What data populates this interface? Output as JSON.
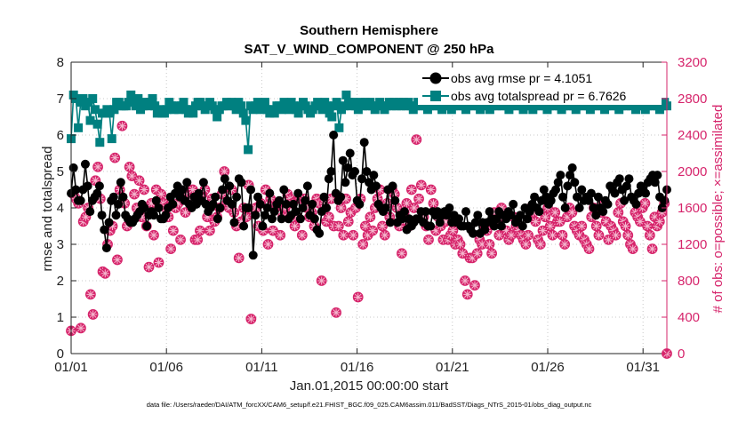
{
  "chart_data": {
    "type": "line",
    "title": [
      "Southern Hemisphere",
      "SAT_V_WIND_COMPONENT @ 250 hPa"
    ],
    "xlabel": "Jan.01,2015 00:00:00 start",
    "ylabel_left": "rmse and totalspread",
    "ylabel_right": "# of obs: o=possible; ×=assimilated",
    "x_range": [
      0,
      31.25
    ],
    "ylim_left": [
      0,
      8
    ],
    "ylim_right": [
      0,
      3200
    ],
    "x_ticks": [
      {
        "x": 0,
        "label": "01/01"
      },
      {
        "x": 5,
        "label": "01/06"
      },
      {
        "x": 10,
        "label": "01/11"
      },
      {
        "x": 15,
        "label": "01/16"
      },
      {
        "x": 20,
        "label": "01/21"
      },
      {
        "x": 25,
        "label": "01/26"
      },
      {
        "x": 30,
        "label": "01/31"
      }
    ],
    "y_ticks_left": [
      0,
      1,
      2,
      3,
      4,
      5,
      6,
      7,
      8
    ],
    "y_ticks_right": [
      0,
      400,
      800,
      1200,
      1600,
      2000,
      2400,
      2800,
      3200
    ],
    "legend": {
      "placement": "top-right",
      "entries": [
        "obs avg rmse pr = 4.1051",
        "obs avg totalspread pr = 6.7626"
      ]
    },
    "colors": {
      "rmse": "#000000",
      "totalspread": "#008080",
      "obs": "#d6246b"
    },
    "series": [
      {
        "name": "obs avg rmse pr = 4.1051",
        "values": [
          4.4,
          5.1,
          4.5,
          4.2,
          4.2,
          4.5,
          5.2,
          4.6,
          3.9,
          4.2,
          4.3,
          4.4,
          4.6,
          3.8,
          3.4,
          2.9,
          3.6,
          4.2,
          4.3,
          3.8,
          4.1,
          4.7,
          4.3,
          3.8,
          3.7,
          3.6,
          3.6,
          3.7,
          3.8,
          3.9,
          4.1,
          4.0,
          3.5,
          3.8,
          3.9,
          3.8,
          4.2,
          4.0,
          3.7,
          3.7,
          3.8,
          4.0,
          4.3,
          4.1,
          4.4,
          4.6,
          4.3,
          4.5,
          4.2,
          4.7,
          4.1,
          4.0,
          4.3,
          4.1,
          4.4,
          4.2,
          4.7,
          4.1,
          3.9,
          4.0,
          4.1,
          4.3,
          3.7,
          4.0,
          4.5,
          4.8,
          4.2,
          4.6,
          4.1,
          3.6,
          4.3,
          4.8,
          4.7,
          3.5,
          4.0,
          4.0,
          4.5,
          2.7,
          3.8,
          4.3,
          4.1,
          3.5,
          3.8,
          4.0,
          4.4,
          3.7,
          3.9,
          4.1,
          4.2,
          3.7,
          4.5,
          4.1,
          3.7,
          3.8,
          4.1,
          3.9,
          4.4,
          3.7,
          4.0,
          4.2,
          4.6,
          3.8,
          4.1,
          3.7,
          3.4,
          3.3,
          3.9,
          4.3,
          4.0,
          4.8,
          5.0,
          6.0,
          4.4,
          4.2,
          4.3,
          5.3,
          4.7,
          5.1,
          5.5,
          4.9,
          5.0,
          4.2,
          4.1,
          4.8,
          5.8,
          5.0,
          4.7,
          4.5,
          4.9,
          4.6,
          4.1,
          4.0,
          3.9,
          4.0,
          4.5,
          3.6,
          4.6,
          4.2,
          3.6,
          3.8,
          3.7,
          3.9,
          3.4,
          3.7,
          3.5,
          3.6,
          3.7,
          3.7,
          3.9,
          3.6,
          3.9,
          3.5,
          3.5,
          3.9,
          3.8,
          3.9,
          3.6,
          3.8,
          3.9,
          3.8,
          4.0,
          3.6,
          3.8,
          3.6,
          3.7,
          3.5,
          3.5,
          3.9,
          3.5,
          3.4,
          3.3,
          3.6,
          3.8,
          3.3,
          3.6,
          3.4,
          3.6,
          3.9,
          3.7,
          3.5,
          3.7,
          3.9,
          3.5,
          3.8,
          3.7,
          3.9,
          3.8,
          4.1,
          3.6,
          3.7,
          3.8,
          3.5,
          4.0,
          3.7,
          3.9,
          4.1,
          4.3,
          4.0,
          3.9,
          4.2,
          4.5,
          4.3,
          4.1,
          4.2,
          4.4,
          4.5,
          4.7,
          4.9,
          4.3,
          4.0,
          4.6,
          4.9,
          5.1,
          4.7,
          4.3,
          4.0,
          4.5,
          4.2,
          4.3,
          4.2,
          4.4,
          4.0,
          3.8,
          4.3,
          4.0,
          3.9,
          4.2,
          4.1,
          4.6,
          4.5,
          4.4,
          4.7,
          4.8,
          4.5,
          4.2,
          4.6,
          4.8,
          4.3,
          4.2,
          4.1,
          4.4,
          4.6,
          4.5,
          4.4,
          4.7,
          4.8,
          4.9,
          4.7,
          4.9,
          4.3,
          4.0,
          4.2,
          4.5
        ]
      },
      {
        "name": "obs avg totalspread pr = 6.7626",
        "values": [
          5.9,
          7.1,
          7.0,
          6.2,
          6.9,
          7.0,
          6.8,
          6.9,
          6.4,
          7.0,
          6.7,
          6.3,
          5.8,
          6.6,
          6.6,
          6.7,
          6.6,
          5.9,
          6.7,
          6.9,
          6.9,
          6.8,
          6.8,
          6.8,
          6.9,
          7.1,
          6.9,
          6.8,
          7.0,
          6.7,
          6.8,
          6.9,
          6.8,
          6.9,
          7.0,
          6.8,
          6.6,
          6.7,
          6.6,
          6.6,
          6.7,
          6.9,
          6.8,
          6.7,
          6.8,
          6.7,
          6.8,
          6.9,
          6.7,
          6.6,
          6.7,
          6.6,
          6.8,
          6.9,
          6.9,
          6.8,
          6.7,
          6.8,
          6.9,
          6.8,
          6.7,
          6.5,
          6.7,
          6.8,
          6.8,
          6.9,
          6.8,
          6.9,
          6.8,
          6.7,
          6.9,
          6.8,
          6.6,
          6.4,
          5.6,
          6.8,
          6.7,
          6.8,
          6.9,
          6.7,
          6.8,
          6.9,
          6.7,
          6.6,
          6.7,
          6.6,
          6.8,
          6.8,
          6.7,
          6.9,
          6.8,
          6.7,
          6.9,
          6.8,
          6.7,
          6.6,
          6.8,
          6.9,
          6.8,
          6.7,
          6.6,
          6.7,
          6.8,
          6.9,
          6.8,
          6.7,
          6.9,
          6.8,
          6.6,
          6.5,
          6.8,
          6.9,
          6.2,
          6.7,
          6.8,
          7.1,
          6.9,
          6.8,
          6.9,
          6.8,
          6.7,
          6.9,
          6.8,
          6.9,
          6.8,
          6.9,
          6.8,
          6.7,
          6.8,
          6.9,
          6.8,
          6.7,
          6.8,
          6.9,
          6.8,
          6.9,
          6.8,
          6.9,
          6.8,
          6.9,
          6.8,
          6.9,
          6.8,
          6.7,
          6.8,
          6.9,
          6.8,
          6.9,
          6.8,
          6.7,
          6.8,
          6.9,
          6.8,
          6.9,
          6.8,
          6.7,
          6.8,
          6.9,
          6.8,
          6.7,
          6.8,
          6.9,
          6.8,
          6.9,
          6.8,
          6.7,
          6.8,
          6.9,
          6.8,
          6.9,
          6.8,
          6.7,
          6.8,
          6.9,
          6.8,
          6.7,
          6.8,
          6.9,
          6.8,
          6.9,
          6.8,
          6.9,
          6.8,
          6.7,
          6.8,
          6.9,
          6.8,
          6.9,
          6.8,
          6.7,
          6.8,
          6.9,
          6.8,
          6.7,
          6.8,
          6.9,
          6.8,
          6.9,
          6.8,
          6.7,
          6.8,
          6.9,
          6.8,
          6.9,
          6.8,
          6.7,
          6.8,
          6.9,
          6.8,
          6.9,
          6.8,
          6.7,
          6.8,
          6.9,
          6.8,
          6.9,
          6.8,
          6.7,
          6.8,
          6.9,
          6.8,
          6.9,
          6.8,
          6.7,
          6.8,
          6.9,
          6.8,
          6.9,
          6.8,
          6.7,
          6.8,
          6.9,
          6.8,
          6.9,
          6.8,
          6.9,
          6.7,
          6.8,
          6.9,
          6.8,
          6.7,
          6.8,
          6.9,
          6.8,
          6.9,
          6.8,
          6.7,
          6.8,
          6.9,
          6.8
        ]
      },
      {
        "name": "obs count (possible / assimilated)",
        "axis": "right",
        "values": [
          250,
          1750,
          1700,
          1650,
          280,
          1450,
          1500,
          1600,
          650,
          430,
          1900,
          2050,
          1700,
          900,
          880,
          1200,
          1350,
          1400,
          2150,
          1030,
          1800,
          2500,
          1650,
          1400,
          2050,
          1950,
          1750,
          1600,
          1900,
          1500,
          1800,
          1400,
          950,
          1650,
          1300,
          1800,
          1000,
          1750,
          1650,
          1600,
          1500,
          1150,
          1350,
          1600,
          1650,
          1250,
          1700,
          1550,
          1750,
          1700,
          1800,
          1250,
          1250,
          1350,
          1750,
          1800,
          1500,
          1350,
          1700,
          1450,
          1500,
          1600,
          1750,
          2000,
          1650,
          1600,
          1800,
          1550,
          1400,
          1050,
          1450,
          1600,
          1500,
          1850,
          380,
          1550,
          1600,
          1400,
          1650,
          1350,
          1800,
          1200,
          1700,
          1350,
          1600,
          1650,
          1300,
          1500,
          1600,
          1750,
          1700,
          1650,
          1400,
          1500,
          1700,
          1300,
          1700,
          1600,
          1500,
          1550,
          1400,
          1700,
          1650,
          800,
          1650,
          1450,
          1500,
          1700,
          1400,
          450,
          1400,
          1600,
          1300,
          1700,
          1450,
          1550,
          1300,
          1600,
          620,
          1700,
          1200,
          1400,
          1300,
          1500,
          1350,
          1600,
          1700,
          1800,
          1400,
          1300,
          1650,
          1500,
          1800,
          1750,
          1600,
          1400,
          1100,
          1550,
          1650,
          1400,
          1800,
          1600,
          2350,
          1700,
          1850,
          1500,
          1400,
          1250,
          1800,
          1650,
          1350,
          1500,
          1400,
          1250,
          1450,
          1250,
          1300,
          1350,
          1200,
          1250,
          1200,
          1100,
          800,
          650,
          1050,
          1050,
          750,
          1100,
          1250,
          1200,
          1400,
          1350,
          1200,
          1100,
          1550,
          1450,
          1300,
          1600,
          1500,
          1350,
          1250,
          1300,
          1500,
          1400,
          1350,
          1300,
          1250,
          1200,
          1300,
          1600,
          1550,
          1450,
          1250,
          1200,
          1350,
          1500,
          1600,
          1400,
          1300,
          1550,
          1450,
          1450,
          1300,
          1200,
          1500,
          1600,
          1550,
          1400,
          1350,
          1300,
          1400,
          1250,
          1200,
          1150,
          1500,
          1600,
          1400,
          1300,
          1550,
          1650,
          1450,
          1250,
          1400,
          1350,
          1300,
          1550,
          1650,
          1450,
          1400,
          1300,
          1200,
          1150,
          1550,
          1500,
          1450,
          1600,
          1650,
          1400,
          1300,
          1150,
          1500,
          1400,
          1450,
          1550,
          1650,
          0
        ]
      }
    ],
    "footer": "data file: /Users/raeder/DAI/ATM_forcXX/CAM6_setup/f.e21.FHIST_BGC.f09_025.CAM6assim.011/BadSST/Diags_NTrS_2015-01/obs_diag_output.nc"
  }
}
